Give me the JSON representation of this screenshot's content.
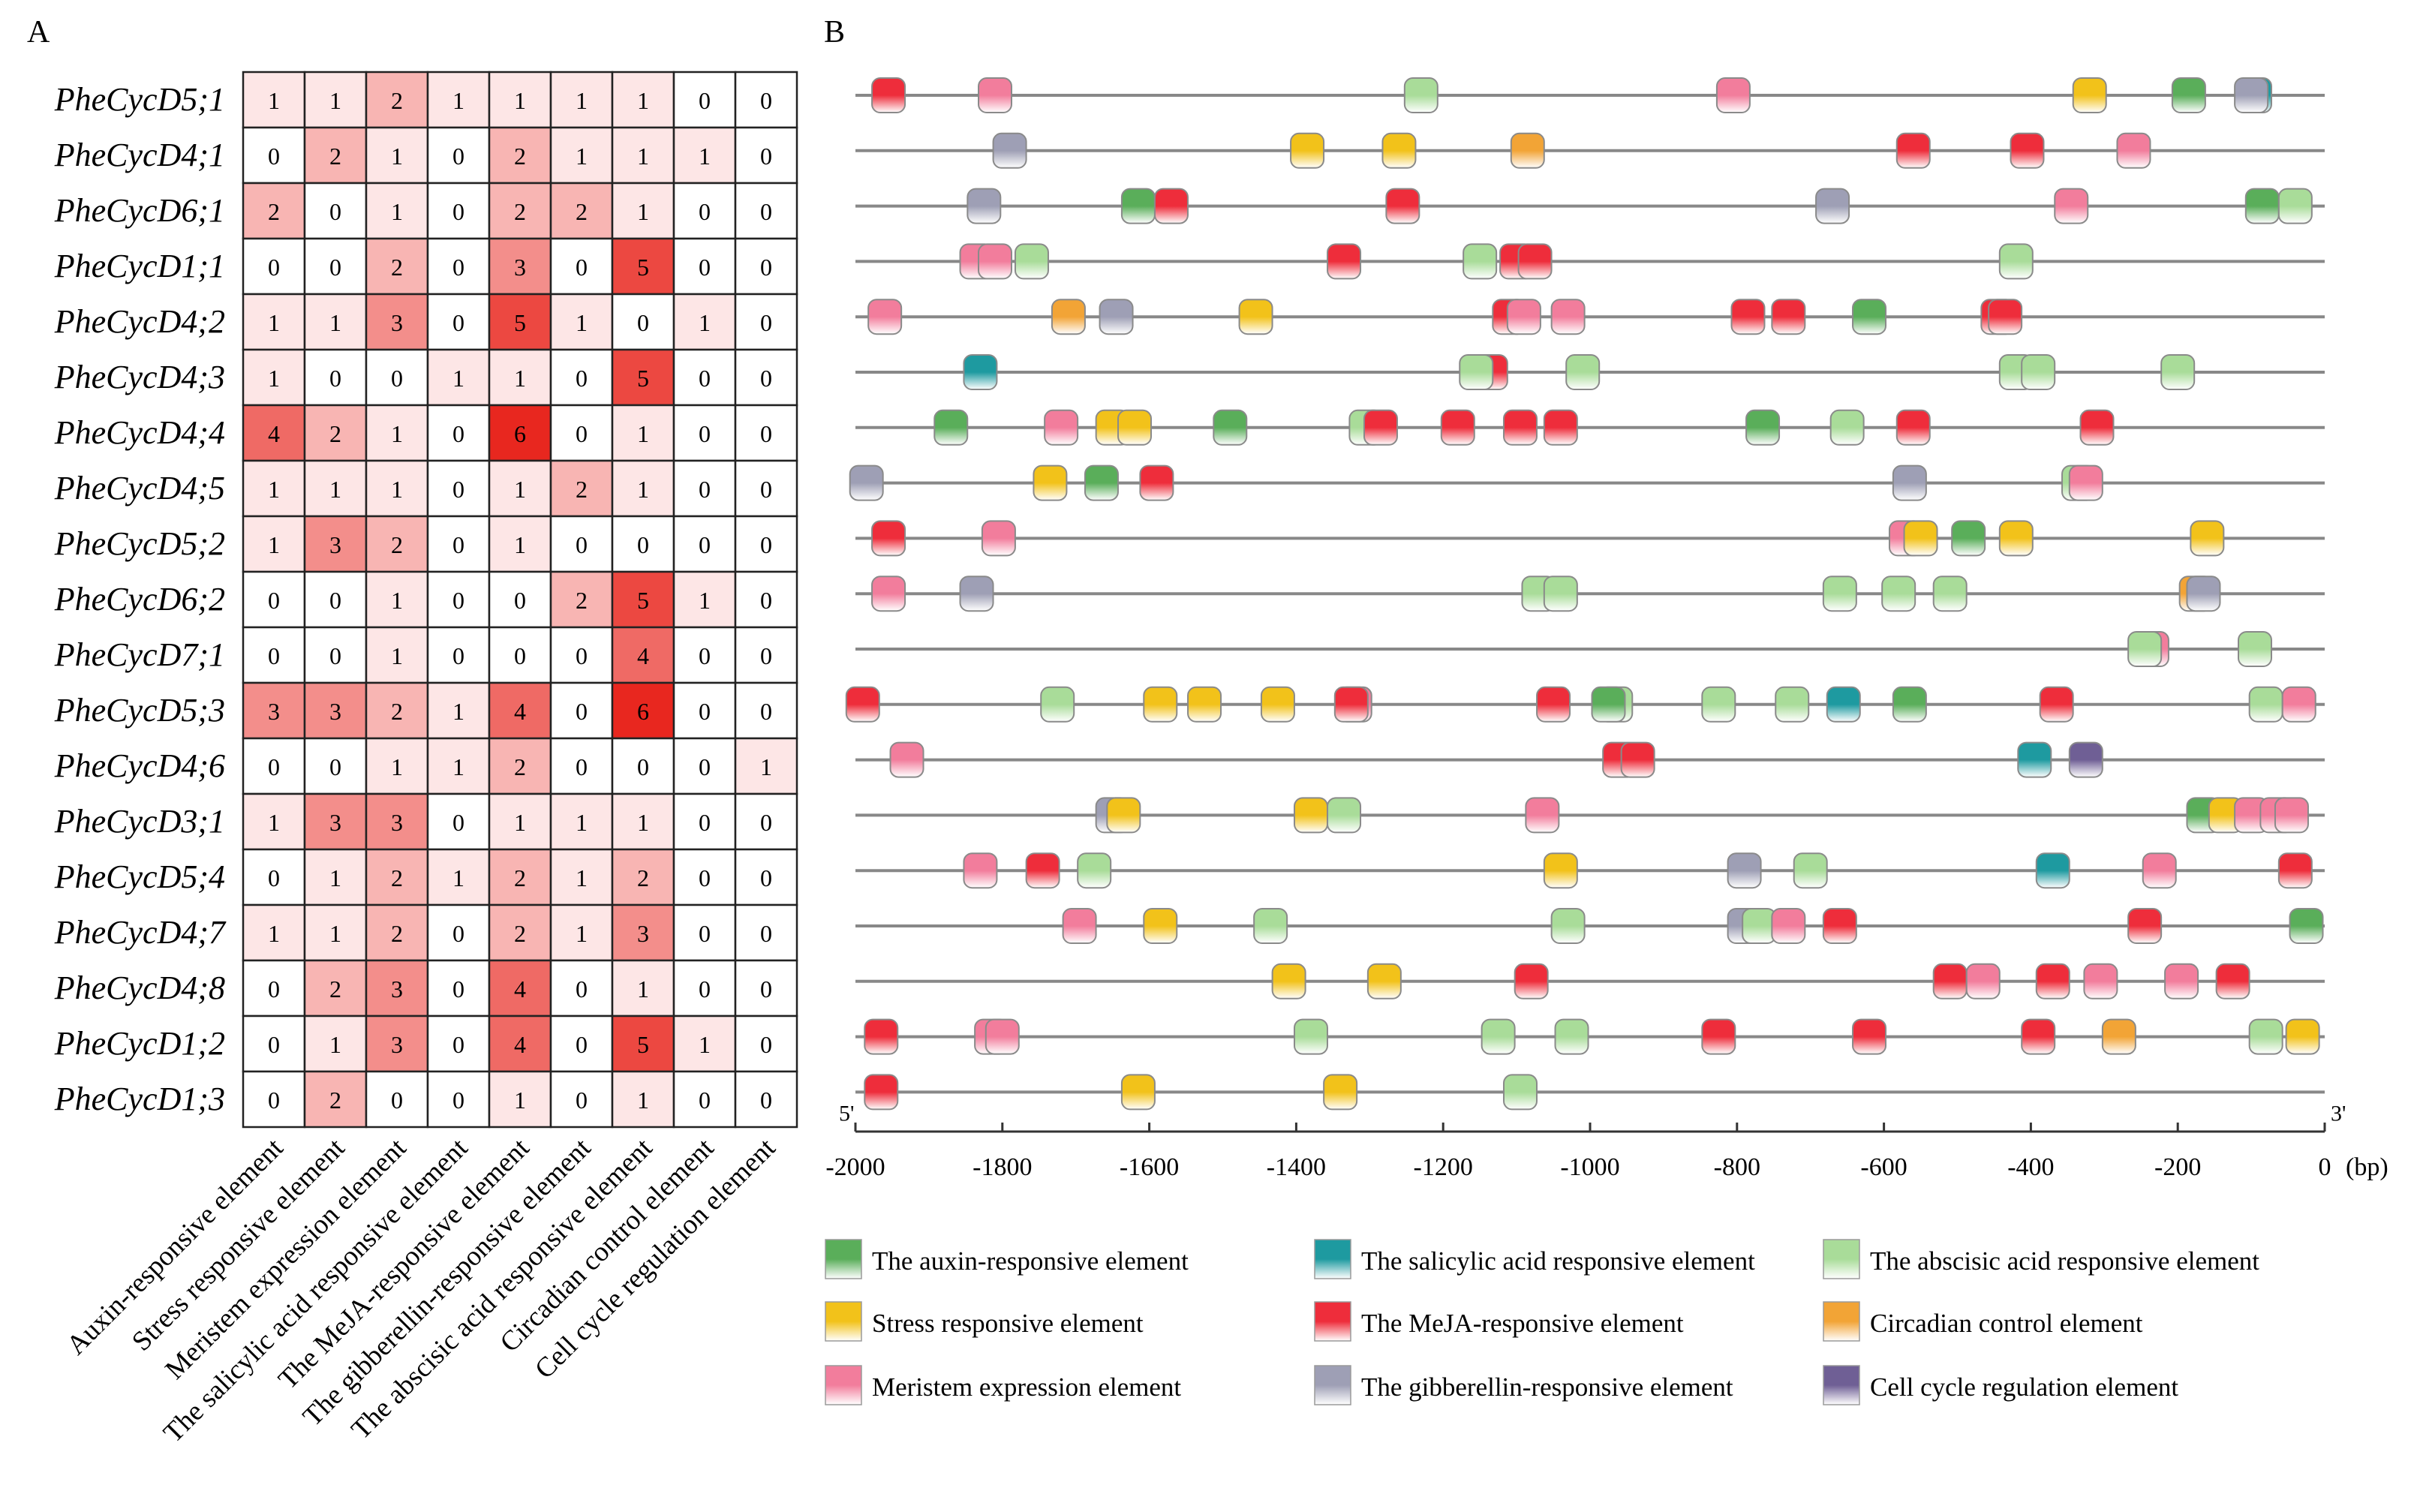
{
  "panel_a_label": "A",
  "panel_b_label": "B",
  "colors": {
    "auxin": "#5aae5a",
    "salicylic": "#1e9aa0",
    "abscisic": "#a9dc99",
    "stress": "#f2c21a",
    "meja": "#ee2d3b",
    "circadian": "#f2a436",
    "meristem": "#f27d9c",
    "gibberellin": "#9e9fb5",
    "cellcycle": "#6f5f95",
    "heat_low": "#fde6e6",
    "heat_high": "#e8271f"
  },
  "chart_data": [
    {
      "type": "heatmap",
      "title": "",
      "genes": [
        "PheCycD5;1",
        "PheCycD4;1",
        "PheCycD6;1",
        "PheCycD1;1",
        "PheCycD4;2",
        "PheCycD4;3",
        "PheCycD4;4",
        "PheCycD4;5",
        "PheCycD5;2",
        "PheCycD6;2",
        "PheCycD7;1",
        "PheCycD5;3",
        "PheCycD4;6",
        "PheCycD3;1",
        "PheCycD5;4",
        "PheCycD4;7",
        "PheCycD4;8",
        "PheCycD1;2",
        "PheCycD1;3"
      ],
      "categories": [
        "Auxin-responsive element",
        "Stress responsive element",
        "Meristem expression element",
        "The salicylic acid responsive element",
        "The MeJA-responsive element",
        "The gibberellin-responsive element",
        "The abscisic acid responsive element",
        "Circadian control element",
        "Cell cycle regulation element"
      ],
      "values": [
        [
          1,
          1,
          2,
          1,
          1,
          1,
          1,
          0,
          0
        ],
        [
          0,
          2,
          1,
          0,
          2,
          1,
          1,
          1,
          0
        ],
        [
          2,
          0,
          1,
          0,
          2,
          2,
          1,
          0,
          0
        ],
        [
          0,
          0,
          2,
          0,
          3,
          0,
          5,
          0,
          0
        ],
        [
          1,
          1,
          3,
          0,
          5,
          1,
          0,
          1,
          0
        ],
        [
          1,
          0,
          0,
          1,
          1,
          0,
          5,
          0,
          0
        ],
        [
          4,
          2,
          1,
          0,
          6,
          0,
          1,
          0,
          0
        ],
        [
          1,
          1,
          1,
          0,
          1,
          2,
          1,
          0,
          0
        ],
        [
          1,
          3,
          2,
          0,
          1,
          0,
          0,
          0,
          0
        ],
        [
          0,
          0,
          1,
          0,
          0,
          2,
          5,
          1,
          0
        ],
        [
          0,
          0,
          1,
          0,
          0,
          0,
          4,
          0,
          0
        ],
        [
          3,
          3,
          2,
          1,
          4,
          0,
          6,
          0,
          0
        ],
        [
          0,
          0,
          1,
          1,
          2,
          0,
          0,
          0,
          1
        ],
        [
          1,
          3,
          3,
          0,
          1,
          1,
          1,
          0,
          0
        ],
        [
          0,
          1,
          2,
          1,
          2,
          1,
          2,
          0,
          0
        ],
        [
          1,
          1,
          2,
          0,
          2,
          1,
          3,
          0,
          0
        ],
        [
          0,
          2,
          3,
          0,
          4,
          0,
          1,
          0,
          0
        ],
        [
          0,
          1,
          3,
          0,
          4,
          0,
          5,
          1,
          0
        ],
        [
          0,
          2,
          0,
          0,
          1,
          0,
          1,
          0,
          0
        ]
      ],
      "color_scale": [
        0,
        6
      ]
    },
    {
      "type": "scatter",
      "title": "",
      "xlabel": "(bp)",
      "xlim": [
        -2000,
        0
      ],
      "xticks": [
        -2000,
        -1800,
        -1600,
        -1400,
        -1200,
        -1000,
        -800,
        -600,
        -400,
        -200,
        0
      ],
      "tick_labels": [
        "-2000",
        "-1800",
        "-1600",
        "-1400",
        "-1200",
        "-1000",
        "-800",
        "-600",
        "-400",
        "-200",
        "0"
      ],
      "five_prime_label": "5'",
      "three_prime_label": "3'",
      "element_types": [
        "auxin",
        "salicylic",
        "abscisic",
        "stress",
        "meja",
        "circadian",
        "meristem",
        "gibberellin",
        "cellcycle"
      ],
      "legend": [
        {
          "type": "auxin",
          "label": "The auxin-responsive element"
        },
        {
          "type": "salicylic",
          "label": "The salicylic acid responsive element"
        },
        {
          "type": "abscisic",
          "label": "The abscisic acid responsive element"
        },
        {
          "type": "stress",
          "label": "Stress responsive element"
        },
        {
          "type": "meja",
          "label": "The MeJA-responsive element"
        },
        {
          "type": "circadian",
          "label": "Circadian control element"
        },
        {
          "type": "meristem",
          "label": "Meristem expression element"
        },
        {
          "type": "gibberellin",
          "label": "The gibberellin-responsive element"
        },
        {
          "type": "cellcycle",
          "label": "Cell cycle regulation element"
        }
      ],
      "rows": [
        [
          {
            "p": -1955,
            "t": "meja"
          },
          {
            "p": -1810,
            "t": "meristem"
          },
          {
            "p": -1230,
            "t": "abscisic"
          },
          {
            "p": -805,
            "t": "meristem"
          },
          {
            "p": -320,
            "t": "stress"
          },
          {
            "p": -185,
            "t": "auxin"
          },
          {
            "p": -95,
            "t": "salicylic"
          },
          {
            "p": -100,
            "t": "gibberellin"
          }
        ],
        [
          {
            "p": -1790,
            "t": "gibberellin"
          },
          {
            "p": -1385,
            "t": "stress"
          },
          {
            "p": -1260,
            "t": "stress"
          },
          {
            "p": -1085,
            "t": "circadian"
          },
          {
            "p": -560,
            "t": "meja"
          },
          {
            "p": -405,
            "t": "meja"
          },
          {
            "p": -260,
            "t": "meristem"
          }
        ],
        [
          {
            "p": -1825,
            "t": "gibberellin"
          },
          {
            "p": -1615,
            "t": "auxin"
          },
          {
            "p": -1570,
            "t": "meja"
          },
          {
            "p": -1255,
            "t": "meja"
          },
          {
            "p": -670,
            "t": "gibberellin"
          },
          {
            "p": -345,
            "t": "meristem"
          },
          {
            "p": -85,
            "t": "auxin"
          },
          {
            "p": -40,
            "t": "abscisic"
          }
        ],
        [
          {
            "p": -1835,
            "t": "meristem"
          },
          {
            "p": -1810,
            "t": "meristem"
          },
          {
            "p": -1760,
            "t": "abscisic"
          },
          {
            "p": -1335,
            "t": "meja"
          },
          {
            "p": -1150,
            "t": "abscisic"
          },
          {
            "p": -1100,
            "t": "meja"
          },
          {
            "p": -1075,
            "t": "meja"
          },
          {
            "p": -420,
            "t": "abscisic"
          }
        ],
        [
          {
            "p": -1960,
            "t": "meristem"
          },
          {
            "p": -1710,
            "t": "circadian"
          },
          {
            "p": -1645,
            "t": "gibberellin"
          },
          {
            "p": -1455,
            "t": "stress"
          },
          {
            "p": -1110,
            "t": "meja"
          },
          {
            "p": -1090,
            "t": "meristem"
          },
          {
            "p": -1030,
            "t": "meristem"
          },
          {
            "p": -785,
            "t": "meja"
          },
          {
            "p": -730,
            "t": "meja"
          },
          {
            "p": -620,
            "t": "auxin"
          },
          {
            "p": -445,
            "t": "meja"
          },
          {
            "p": -435,
            "t": "meja"
          }
        ],
        [
          {
            "p": -1830,
            "t": "salicylic"
          },
          {
            "p": -1135,
            "t": "meja"
          },
          {
            "p": -1155,
            "t": "abscisic"
          },
          {
            "p": -1010,
            "t": "abscisic"
          },
          {
            "p": -420,
            "t": "abscisic"
          },
          {
            "p": -390,
            "t": "abscisic"
          },
          {
            "p": -200,
            "t": "abscisic"
          }
        ],
        [
          {
            "p": -1870,
            "t": "auxin"
          },
          {
            "p": -1720,
            "t": "meristem"
          },
          {
            "p": -1650,
            "t": "stress"
          },
          {
            "p": -1620,
            "t": "stress"
          },
          {
            "p": -1490,
            "t": "auxin"
          },
          {
            "p": -1305,
            "t": "abscisic"
          },
          {
            "p": -1285,
            "t": "meja"
          },
          {
            "p": -1180,
            "t": "meja"
          },
          {
            "p": -1095,
            "t": "meja"
          },
          {
            "p": -1040,
            "t": "meja"
          },
          {
            "p": -765,
            "t": "auxin"
          },
          {
            "p": -650,
            "t": "abscisic"
          },
          {
            "p": -560,
            "t": "meja"
          },
          {
            "p": -310,
            "t": "meja"
          }
        ],
        [
          {
            "p": -1985,
            "t": "gibberellin"
          },
          {
            "p": -1735,
            "t": "stress"
          },
          {
            "p": -1665,
            "t": "auxin"
          },
          {
            "p": -1590,
            "t": "meja"
          },
          {
            "p": -565,
            "t": "gibberellin"
          },
          {
            "p": -335,
            "t": "abscisic"
          },
          {
            "p": -325,
            "t": "meristem"
          }
        ],
        [
          {
            "p": -1955,
            "t": "meja"
          },
          {
            "p": -1805,
            "t": "meristem"
          },
          {
            "p": -570,
            "t": "meristem"
          },
          {
            "p": -550,
            "t": "stress"
          },
          {
            "p": -485,
            "t": "auxin"
          },
          {
            "p": -420,
            "t": "stress"
          },
          {
            "p": -160,
            "t": "stress"
          }
        ],
        [
          {
            "p": -1955,
            "t": "meristem"
          },
          {
            "p": -1835,
            "t": "gibberellin"
          },
          {
            "p": -1070,
            "t": "abscisic"
          },
          {
            "p": -1040,
            "t": "abscisic"
          },
          {
            "p": -660,
            "t": "abscisic"
          },
          {
            "p": -580,
            "t": "abscisic"
          },
          {
            "p": -510,
            "t": "abscisic"
          },
          {
            "p": -175,
            "t": "circadian"
          },
          {
            "p": -165,
            "t": "gibberellin"
          }
        ],
        [
          {
            "p": -235,
            "t": "meristem"
          },
          {
            "p": -245,
            "t": "abscisic"
          },
          {
            "p": -95,
            "t": "abscisic"
          }
        ],
        [
          {
            "p": -1990,
            "t": "meja"
          },
          {
            "p": -1725,
            "t": "abscisic"
          },
          {
            "p": -1585,
            "t": "stress"
          },
          {
            "p": -1525,
            "t": "stress"
          },
          {
            "p": -1425,
            "t": "stress"
          },
          {
            "p": -1320,
            "t": "meristem"
          },
          {
            "p": -1325,
            "t": "meja"
          },
          {
            "p": -1050,
            "t": "meja"
          },
          {
            "p": -965,
            "t": "abscisic"
          },
          {
            "p": -975,
            "t": "auxin"
          },
          {
            "p": -825,
            "t": "abscisic"
          },
          {
            "p": -725,
            "t": "abscisic"
          },
          {
            "p": -655,
            "t": "salicylic"
          },
          {
            "p": -565,
            "t": "auxin"
          },
          {
            "p": -365,
            "t": "meja"
          },
          {
            "p": -80,
            "t": "abscisic"
          },
          {
            "p": -35,
            "t": "meristem"
          }
        ],
        [
          {
            "p": -1930,
            "t": "meristem"
          },
          {
            "p": -960,
            "t": "meja"
          },
          {
            "p": -935,
            "t": "meja"
          },
          {
            "p": -395,
            "t": "salicylic"
          },
          {
            "p": -325,
            "t": "cellcycle"
          }
        ],
        [
          {
            "p": -1650,
            "t": "gibberellin"
          },
          {
            "p": -1635,
            "t": "stress"
          },
          {
            "p": -1380,
            "t": "stress"
          },
          {
            "p": -1335,
            "t": "abscisic"
          },
          {
            "p": -1065,
            "t": "meristem"
          },
          {
            "p": -165,
            "t": "auxin"
          },
          {
            "p": -135,
            "t": "stress"
          },
          {
            "p": -100,
            "t": "meristem"
          },
          {
            "p": -65,
            "t": "meristem"
          },
          {
            "p": -45,
            "t": "meristem"
          }
        ],
        [
          {
            "p": -1830,
            "t": "meristem"
          },
          {
            "p": -1745,
            "t": "meja"
          },
          {
            "p": -1675,
            "t": "abscisic"
          },
          {
            "p": -1040,
            "t": "stress"
          },
          {
            "p": -790,
            "t": "gibberellin"
          },
          {
            "p": -700,
            "t": "abscisic"
          },
          {
            "p": -370,
            "t": "salicylic"
          },
          {
            "p": -225,
            "t": "meristem"
          },
          {
            "p": -40,
            "t": "meja"
          }
        ],
        [
          {
            "p": -1695,
            "t": "meristem"
          },
          {
            "p": -1585,
            "t": "stress"
          },
          {
            "p": -1435,
            "t": "abscisic"
          },
          {
            "p": -1030,
            "t": "abscisic"
          },
          {
            "p": -790,
            "t": "gibberellin"
          },
          {
            "p": -770,
            "t": "abscisic"
          },
          {
            "p": -730,
            "t": "meristem"
          },
          {
            "p": -660,
            "t": "meja"
          },
          {
            "p": -245,
            "t": "meja"
          },
          {
            "p": -25,
            "t": "auxin"
          }
        ],
        [
          {
            "p": -1410,
            "t": "stress"
          },
          {
            "p": -1280,
            "t": "stress"
          },
          {
            "p": -1080,
            "t": "meja"
          },
          {
            "p": -510,
            "t": "meja"
          },
          {
            "p": -465,
            "t": "meristem"
          },
          {
            "p": -370,
            "t": "meja"
          },
          {
            "p": -305,
            "t": "meristem"
          },
          {
            "p": -195,
            "t": "meristem"
          },
          {
            "p": -125,
            "t": "meja"
          }
        ],
        [
          {
            "p": -1965,
            "t": "meja"
          },
          {
            "p": -1815,
            "t": "meristem"
          },
          {
            "p": -1800,
            "t": "meristem"
          },
          {
            "p": -1380,
            "t": "abscisic"
          },
          {
            "p": -1125,
            "t": "abscisic"
          },
          {
            "p": -1025,
            "t": "abscisic"
          },
          {
            "p": -825,
            "t": "meja"
          },
          {
            "p": -620,
            "t": "meja"
          },
          {
            "p": -390,
            "t": "meja"
          },
          {
            "p": -280,
            "t": "circadian"
          },
          {
            "p": -80,
            "t": "abscisic"
          },
          {
            "p": -30,
            "t": "stress"
          }
        ],
        [
          {
            "p": -1965,
            "t": "meja"
          },
          {
            "p": -1615,
            "t": "stress"
          },
          {
            "p": -1340,
            "t": "stress"
          },
          {
            "p": -1095,
            "t": "abscisic"
          }
        ]
      ]
    }
  ]
}
